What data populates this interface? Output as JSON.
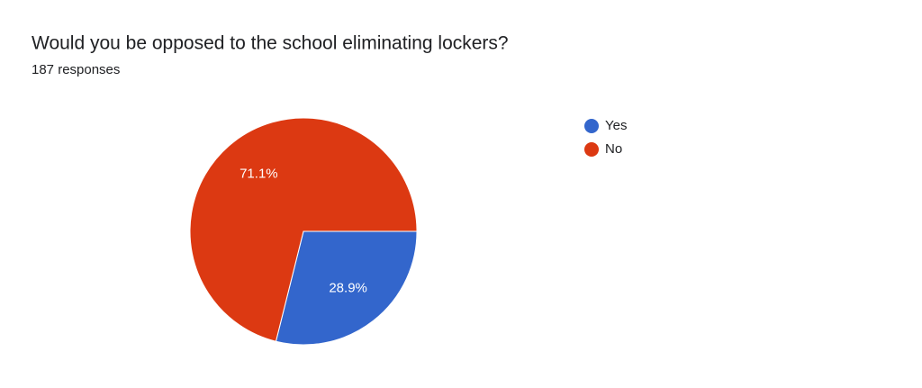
{
  "chart_data": {
    "type": "pie",
    "title": "Would you be opposed to the school eliminating lockers?",
    "subtitle": "187 responses",
    "categories": [
      "Yes",
      "No"
    ],
    "values": [
      28.9,
      71.1
    ],
    "value_labels": [
      "28.9%",
      "71.1%"
    ],
    "colors": [
      "#3366cc",
      "#dc3912"
    ],
    "legend": "right"
  }
}
